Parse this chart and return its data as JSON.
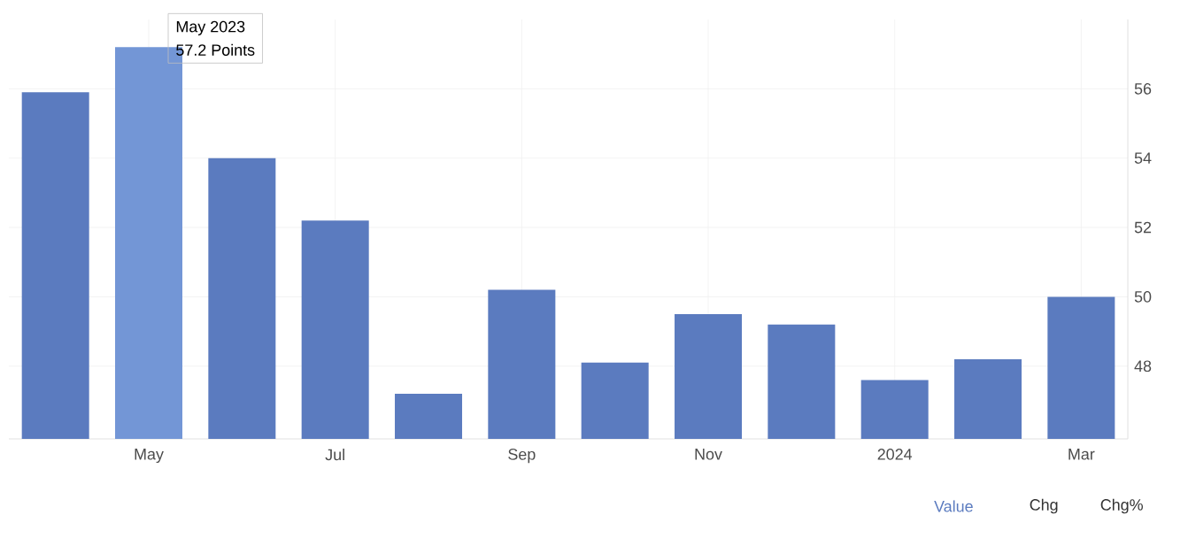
{
  "chart_data": {
    "type": "bar",
    "categories": [
      null,
      "May",
      null,
      "Jul",
      null,
      "Sep",
      null,
      "Nov",
      null,
      "2024",
      null,
      "Mar"
    ],
    "values": [
      55.9,
      57.2,
      54.0,
      52.2,
      47.2,
      50.2,
      48.1,
      49.5,
      49.2,
      47.6,
      48.2,
      50.0
    ],
    "colors": [
      "#5b7bbf",
      "#7396d6",
      "#5b7bbf",
      "#5b7bbf",
      "#5b7bbf",
      "#5b7bbf",
      "#5b7bbf",
      "#5b7bbf",
      "#5b7bbf",
      "#5b7bbf",
      "#5b7bbf",
      "#5b7bbf"
    ],
    "ylim": [
      45.9,
      58
    ],
    "yticks": [
      48,
      50,
      52,
      54,
      56
    ],
    "grid": true,
    "annotations": [
      {
        "text": "May 2023",
        "x": "May",
        "y": 57.2
      },
      {
        "text": "57.2 Points",
        "x": "May",
        "y": 57.2
      },
      "Value",
      "Chg",
      "Chg%"
    ]
  }
}
